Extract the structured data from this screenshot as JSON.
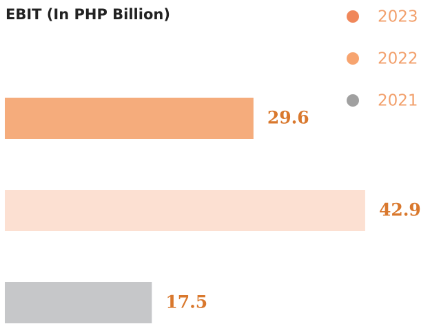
{
  "chart_data": {
    "type": "bar",
    "orientation": "horizontal",
    "title": "EBIT (In PHP Billion)",
    "series": [
      {
        "name": "2023",
        "color": "#f5ac7c",
        "legend_color": "#f0875a",
        "values": [
          29.6
        ]
      },
      {
        "name": "2022",
        "color": "#fce0d2",
        "legend_color": "#f7a46f",
        "values": [
          42.9
        ]
      },
      {
        "name": "2021",
        "color": "#c6c7c9",
        "legend_color": "#a0a0a0",
        "values": [
          17.5
        ]
      }
    ],
    "legend": "top-right"
  }
}
